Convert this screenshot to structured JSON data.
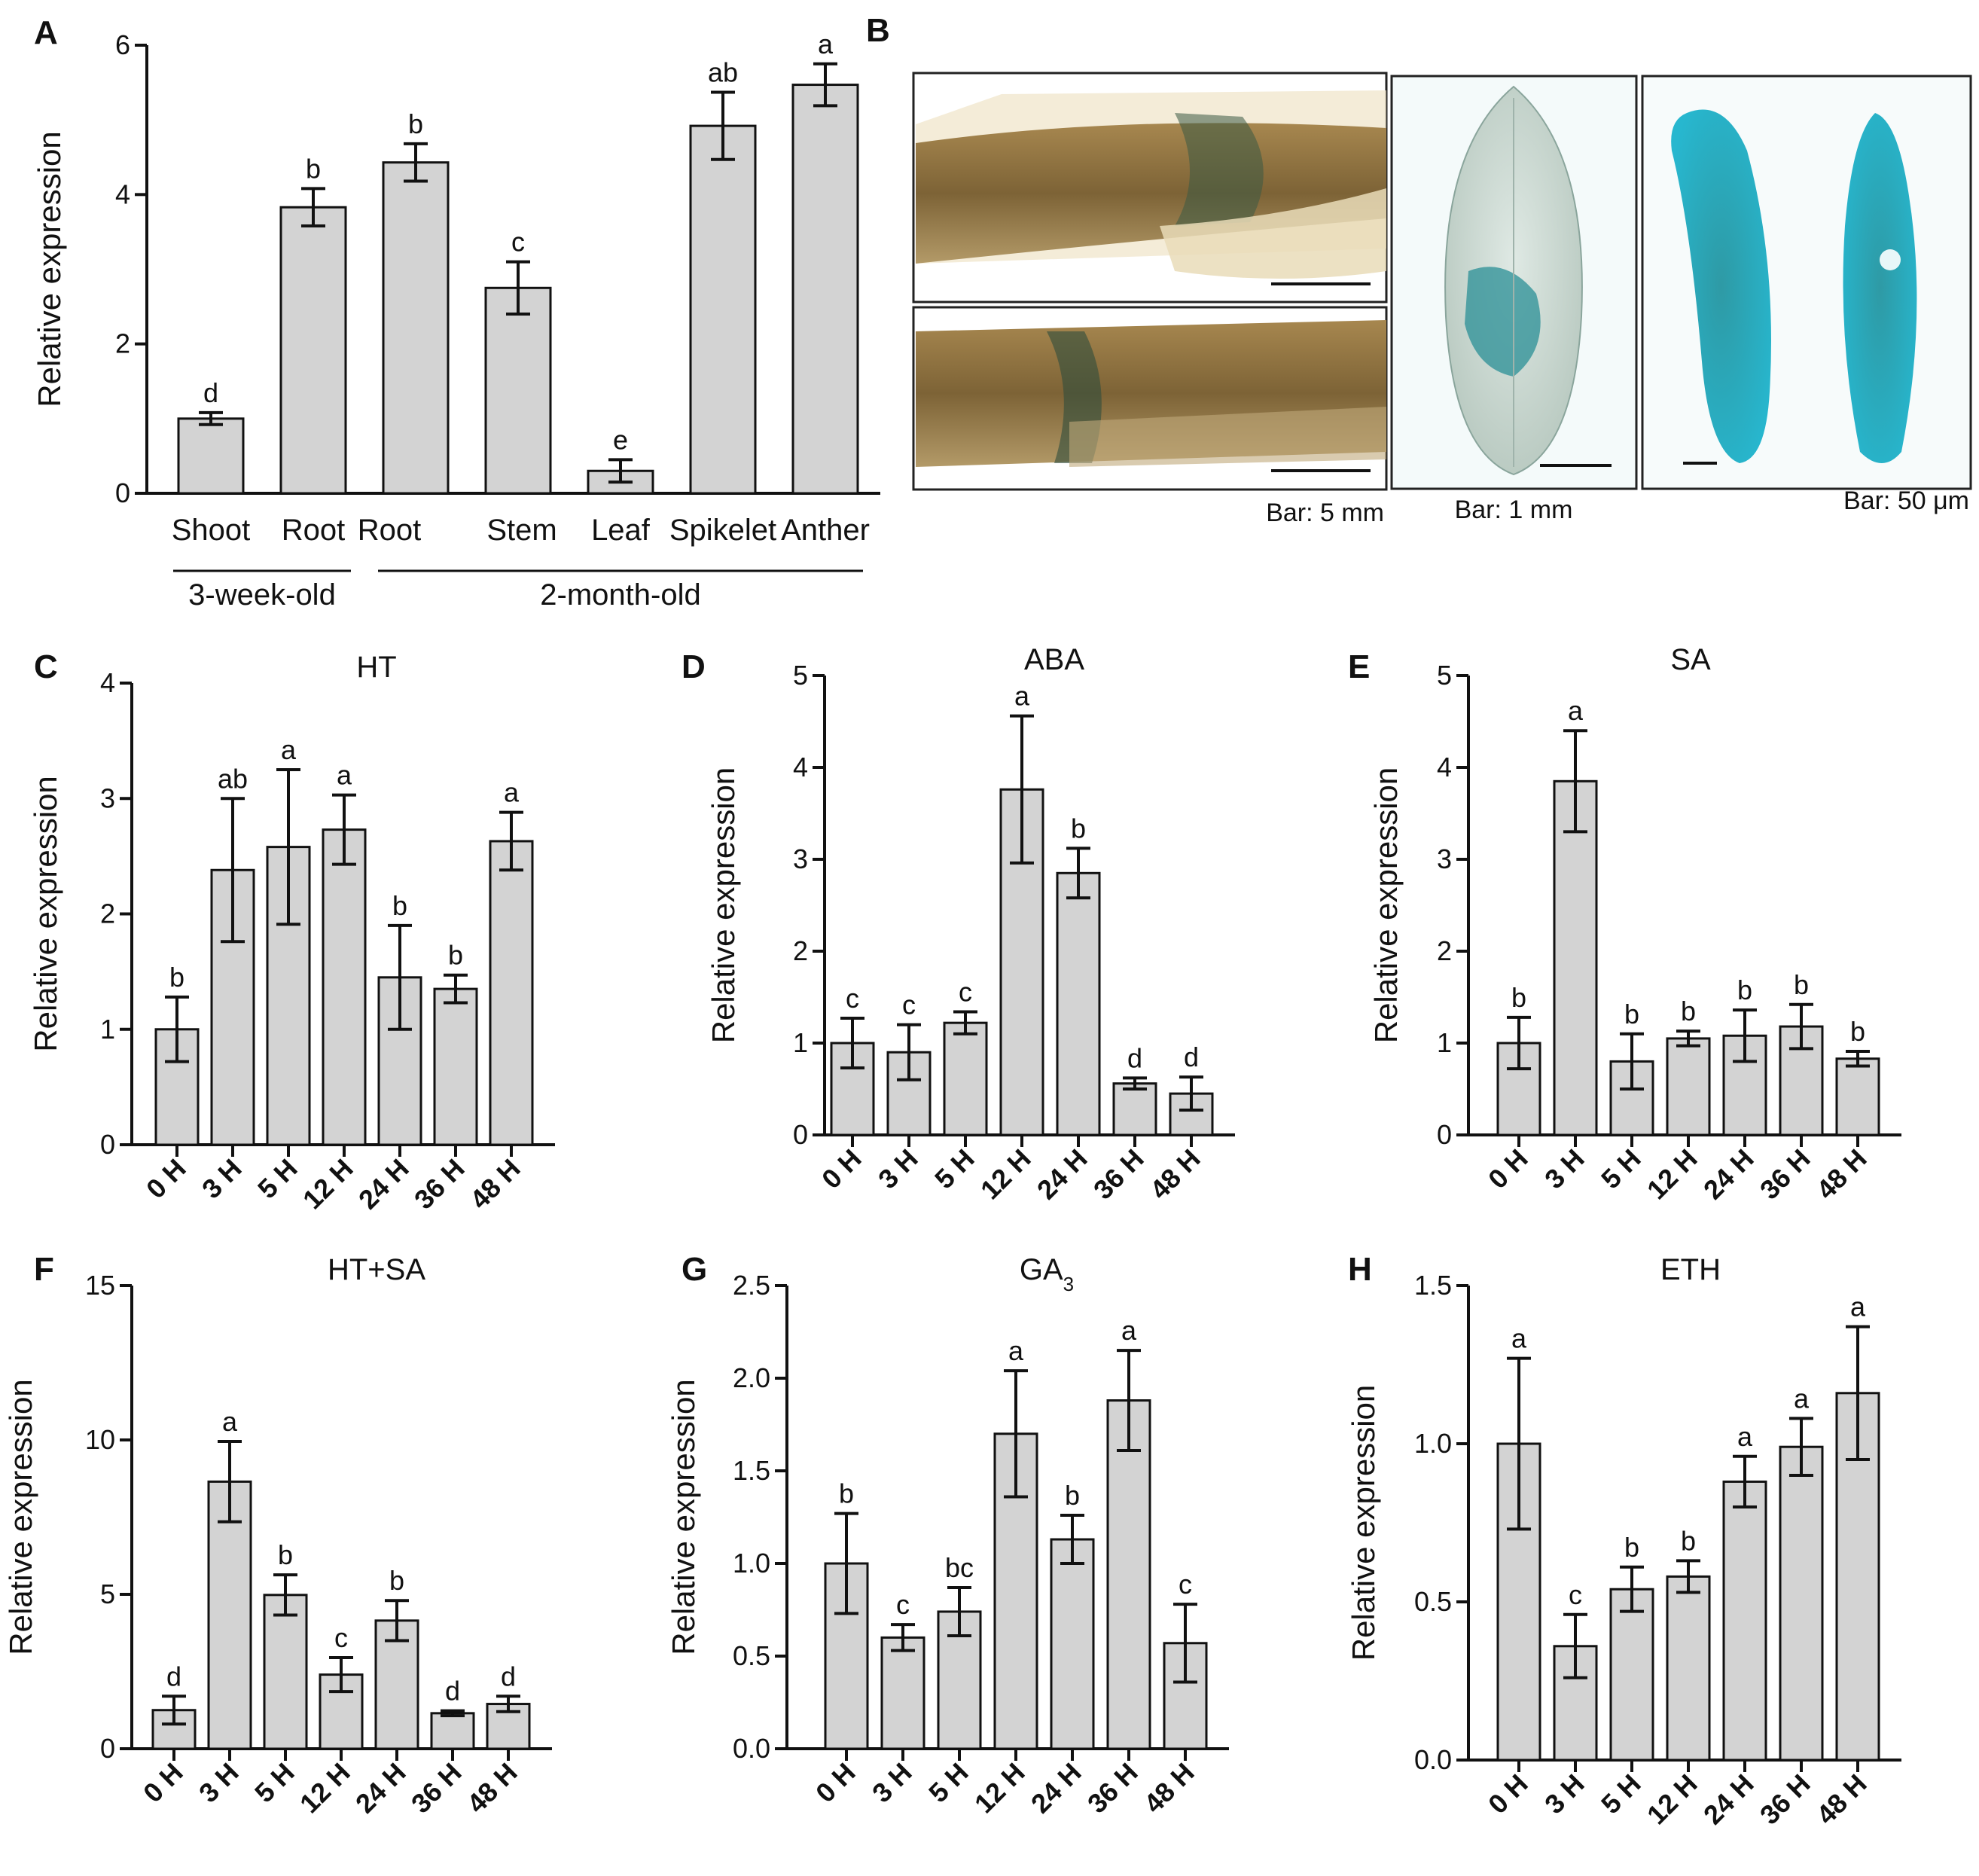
{
  "figure": {
    "panel_b": {
      "letter": "B",
      "scale_bars": [
        "Bar: 5 mm",
        "Bar: 1 mm",
        "Bar: 50 μm"
      ]
    }
  },
  "chart_data": [
    {
      "id": "A",
      "type": "bar",
      "title": "",
      "ylabel": "Relative expression",
      "ylim": [
        0,
        6
      ],
      "yticks": [
        "0",
        "2",
        "4",
        "6"
      ],
      "categories": [
        "Shoot",
        "Root",
        "Root",
        "Stem",
        "Leaf",
        "Spikelet",
        "Anther"
      ],
      "values": [
        1.0,
        3.83,
        4.43,
        2.75,
        0.3,
        4.92,
        5.47
      ],
      "errors": [
        0.08,
        0.25,
        0.25,
        0.35,
        0.15,
        0.45,
        0.28
      ],
      "letters": [
        "d",
        "b",
        "b",
        "c",
        "e",
        "ab",
        "a"
      ],
      "groups": [
        {
          "label": "3-week-old",
          "from": 0,
          "to": 1
        },
        {
          "label": "2-month-old",
          "from": 2,
          "to": 6
        }
      ]
    },
    {
      "id": "C",
      "type": "bar",
      "title": "HT",
      "ylabel": "Relative expression",
      "ylim": [
        0,
        4
      ],
      "yticks": [
        "0",
        "1",
        "2",
        "3",
        "4"
      ],
      "categories": [
        "0 H",
        "3 H",
        "5 H",
        "12 H",
        "24 H",
        "36 H",
        "48 H"
      ],
      "values": [
        1.0,
        2.38,
        2.58,
        2.73,
        1.45,
        1.35,
        2.63
      ],
      "errors": [
        0.28,
        0.62,
        0.67,
        0.3,
        0.45,
        0.12,
        0.25
      ],
      "letters": [
        "b",
        "ab",
        "a",
        "a",
        "b",
        "b",
        "a"
      ]
    },
    {
      "id": "D",
      "type": "bar",
      "title": "ABA",
      "ylabel": "Relative expression",
      "ylim": [
        0,
        5
      ],
      "yticks": [
        "0",
        "1",
        "2",
        "3",
        "4",
        "5"
      ],
      "categories": [
        "0 H",
        "3 H",
        "5 H",
        "12 H",
        "24 H",
        "36 H",
        "48 H"
      ],
      "values": [
        1.0,
        0.9,
        1.22,
        3.76,
        2.85,
        0.56,
        0.45
      ],
      "errors": [
        0.27,
        0.3,
        0.12,
        0.8,
        0.27,
        0.06,
        0.18
      ],
      "letters": [
        "c",
        "c",
        "c",
        "a",
        "b",
        "d",
        "d"
      ]
    },
    {
      "id": "E",
      "type": "bar",
      "title": "SA",
      "ylabel": "Relative expression",
      "ylim": [
        0,
        5
      ],
      "yticks": [
        "0",
        "1",
        "2",
        "3",
        "4",
        "5"
      ],
      "categories": [
        "0 H",
        "3 H",
        "5 H",
        "12 H",
        "24 H",
        "36 H",
        "48 H"
      ],
      "values": [
        1.0,
        3.85,
        0.8,
        1.05,
        1.08,
        1.18,
        0.83
      ],
      "errors": [
        0.28,
        0.55,
        0.3,
        0.08,
        0.28,
        0.24,
        0.08
      ],
      "letters": [
        "b",
        "a",
        "b",
        "b",
        "b",
        "b",
        "b"
      ]
    },
    {
      "id": "F",
      "type": "bar",
      "title": "HT+SA",
      "ylabel": "Relative expression",
      "ylim": [
        0,
        15
      ],
      "yticks": [
        "0",
        "5",
        "10",
        "15"
      ],
      "categories": [
        "0 H",
        "3 H",
        "5 H",
        "12 H",
        "24 H",
        "36 H",
        "48 H"
      ],
      "values": [
        1.25,
        8.65,
        4.98,
        2.4,
        4.15,
        1.15,
        1.45
      ],
      "errors": [
        0.45,
        1.3,
        0.65,
        0.55,
        0.65,
        0.08,
        0.25
      ],
      "letters": [
        "d",
        "a",
        "b",
        "c",
        "b",
        "d",
        "d"
      ]
    },
    {
      "id": "G",
      "type": "bar",
      "title": "GA",
      "title_sub": "3",
      "ylabel": "Relative expression",
      "ylim": [
        0,
        2.5
      ],
      "yticks": [
        "0.0",
        "0.5",
        "1.0",
        "1.5",
        "2.0",
        "2.5"
      ],
      "categories": [
        "0 H",
        "3 H",
        "5 H",
        "12 H",
        "24 H",
        "36 H",
        "48 H"
      ],
      "values": [
        1.0,
        0.6,
        0.74,
        1.7,
        1.13,
        1.88,
        0.57
      ],
      "errors": [
        0.27,
        0.07,
        0.13,
        0.34,
        0.13,
        0.27,
        0.21
      ],
      "letters": [
        "b",
        "c",
        "bc",
        "a",
        "b",
        "a",
        "c"
      ]
    },
    {
      "id": "H",
      "type": "bar",
      "title": "ETH",
      "ylabel": "Relative expression",
      "ylim": [
        0,
        1.5
      ],
      "yticks": [
        "0.0",
        "0.5",
        "1.0",
        "1.5"
      ],
      "categories": [
        "0 H",
        "3 H",
        "5 H",
        "12 H",
        "24 H",
        "36 H",
        "48 H"
      ],
      "values": [
        1.0,
        0.36,
        0.54,
        0.58,
        0.88,
        0.99,
        1.16
      ],
      "errors": [
        0.27,
        0.1,
        0.07,
        0.05,
        0.08,
        0.09,
        0.21
      ],
      "letters": [
        "a",
        "c",
        "b",
        "b",
        "a",
        "a",
        "a"
      ]
    }
  ]
}
